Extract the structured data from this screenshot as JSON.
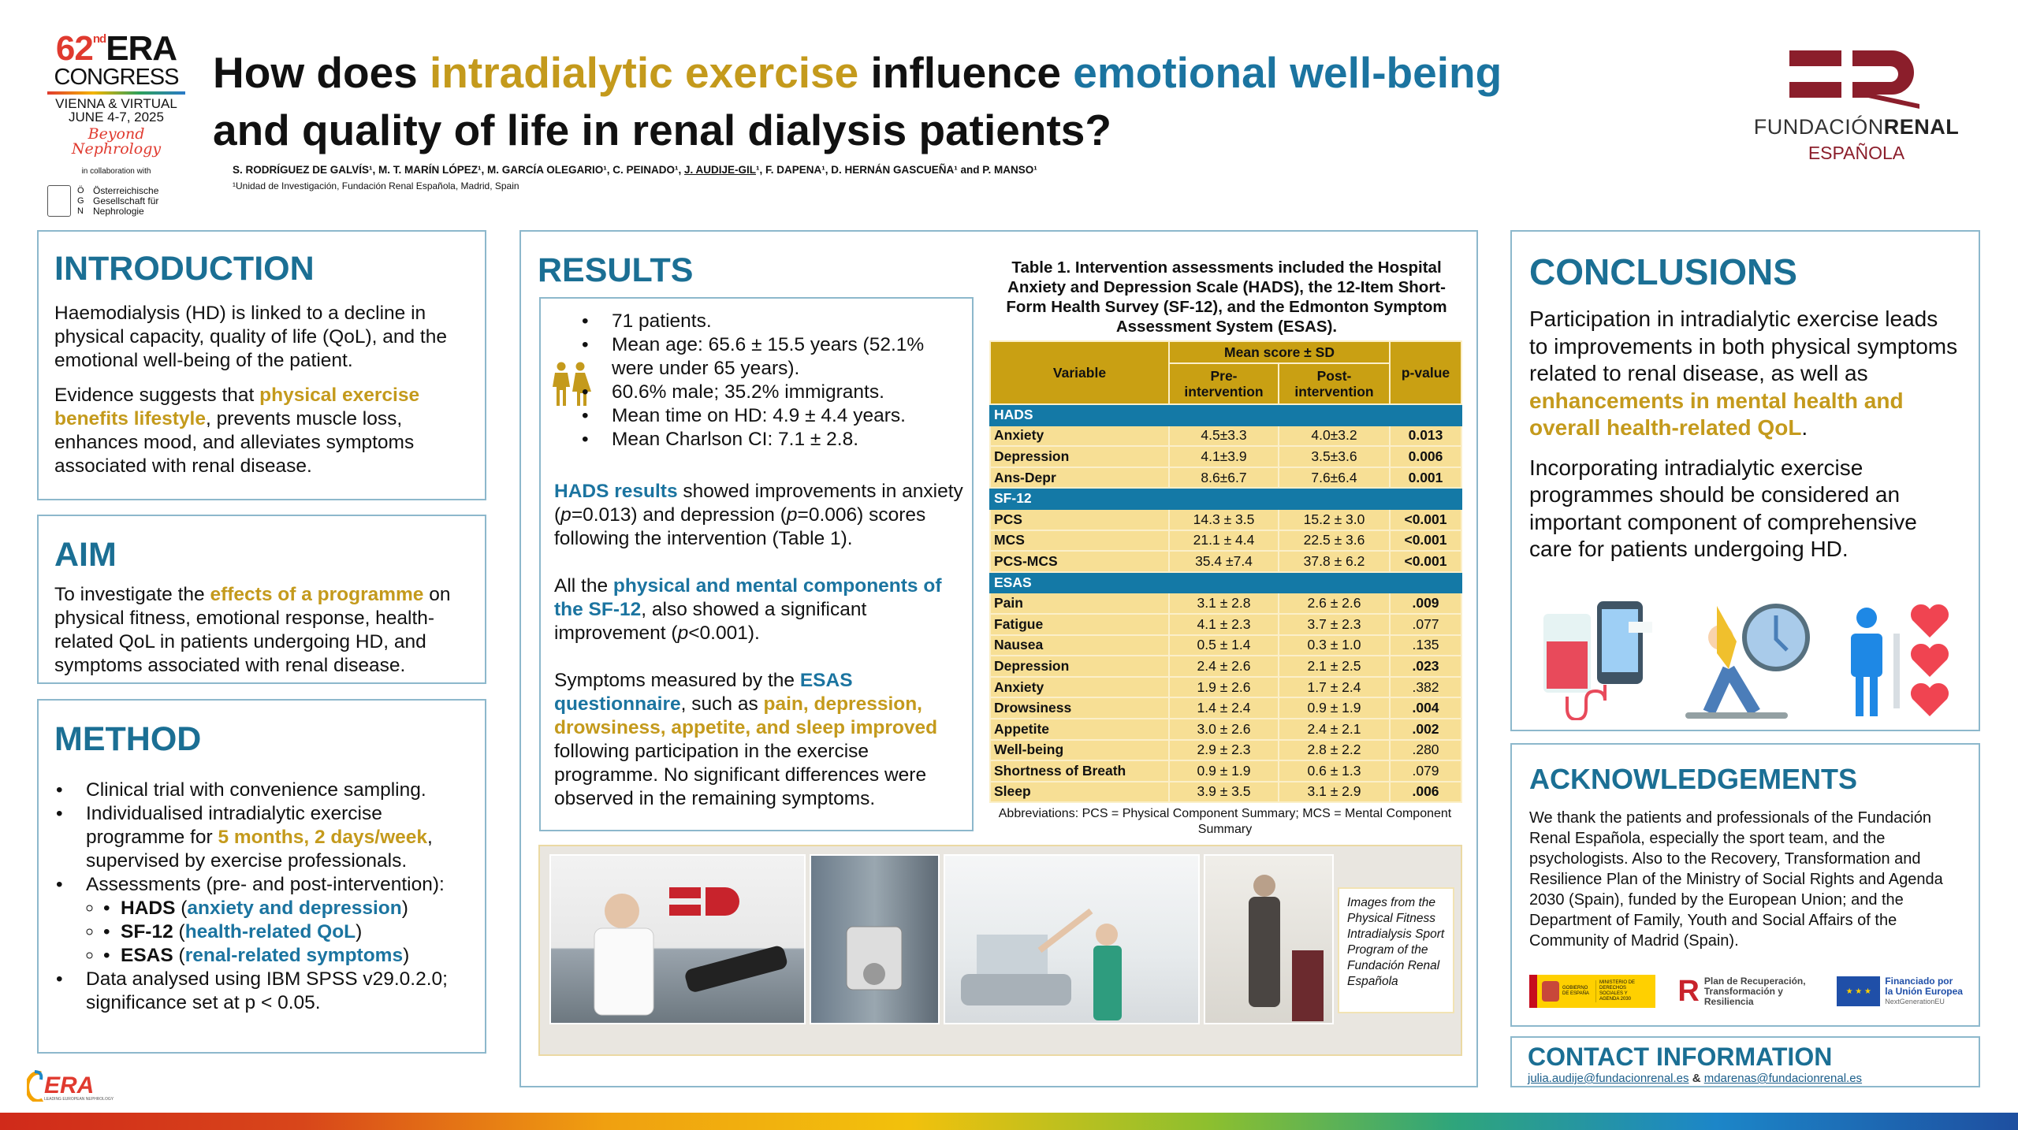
{
  "header": {
    "congress_logo": {
      "number": "62",
      "suffix": "nd",
      "era": "ERA",
      "congress": "CONGRESS",
      "location": "VIENNA & VIRTUAL",
      "dates": "JUNE 4-7, 2025",
      "tagline": "Beyond Nephrology",
      "collab": "in collaboration with",
      "society_letters": "Ö G N",
      "society": "Österreichische Gesellschaft für Nephrologie"
    },
    "title_line1": [
      [
        "How does ",
        ""
      ],
      [
        "intradialytic exercise",
        "g"
      ],
      [
        " influence ",
        ""
      ],
      [
        "emotional well-being",
        "b"
      ]
    ],
    "title_line2": "and quality of life in renal dialysis patients?",
    "authors": [
      [
        "S. RODRÍGUEZ DE GALVÍS¹, M. T. MARÍN LÓPEZ¹, M. GARCÍA OLEGARIO¹, C. PEINADO¹, ",
        ""
      ],
      [
        "J. AUDIJE-GIL",
        "u"
      ],
      [
        "¹, F. DAPENA¹, D. HERNÁN GASCUEÑA¹ and P. MANSO¹",
        ""
      ]
    ],
    "affiliation": "¹Unidad de Investigación, Fundación Renal Española, Madrid, Spain",
    "org_logo": {
      "line1a": "FUNDACIÓN",
      "line1b": "RENAL",
      "line2": "ESPAÑOLA"
    }
  },
  "introduction": {
    "heading": "INTRODUCTION",
    "paragraphs": [
      [
        [
          "Haemodialysis (HD) is linked to a decline in physical capacity, quality of life (QoL), and the emotional well-being of the patient.",
          ""
        ]
      ],
      [
        [
          "Evidence suggests that ",
          ""
        ],
        [
          "physical exercise benefits lifestyle",
          "g"
        ],
        [
          ", prevents muscle loss, enhances mood, and alleviates symptoms associated with renal disease.",
          ""
        ]
      ]
    ]
  },
  "aim": {
    "heading": "AIM",
    "text": [
      [
        "To investigate the ",
        ""
      ],
      [
        "effects of a programme",
        "g"
      ],
      [
        " on physical fitness, emotional response, health-related QoL in patients undergoing HD, and symptoms associated with renal disease.",
        ""
      ]
    ]
  },
  "method": {
    "heading": "METHOD",
    "item1": [
      [
        "Clinical trial with convenience sampling.",
        ""
      ]
    ],
    "item2": [
      [
        "Individualised intradialytic exercise programme for ",
        ""
      ],
      [
        "5 months, 2 days/week",
        "g"
      ],
      [
        ", supervised by exercise professionals.",
        ""
      ]
    ],
    "item3": [
      [
        "Assessments (pre- and post-intervention):",
        ""
      ]
    ],
    "sub1": [
      [
        "HADS",
        "k"
      ],
      [
        " (",
        ""
      ],
      [
        "anxiety and depression",
        "b"
      ],
      [
        ")",
        ""
      ]
    ],
    "sub2": [
      [
        "SF-12",
        "k"
      ],
      [
        " (",
        ""
      ],
      [
        "health-related QoL",
        "b"
      ],
      [
        ")",
        ""
      ]
    ],
    "sub3": [
      [
        "ESAS",
        "k"
      ],
      [
        " (",
        ""
      ],
      [
        "renal-related symptoms",
        "b"
      ],
      [
        ")",
        ""
      ]
    ],
    "item4": [
      [
        "Data analysed using IBM SPSS v29.0.2.0; significance set at p < 0.05.",
        ""
      ]
    ]
  },
  "results": {
    "heading": "RESULTS",
    "demographics": [
      "71 patients.",
      "Mean age: 65.6 ± 15.5 years (52.1% were under 65 years).",
      "60.6% male; 35.2% immigrants.",
      "Mean time on HD: 4.9 ± 4.4 years.",
      "Mean Charlson CI: 7.1 ± 2.8."
    ],
    "p1": [
      [
        "HADS results",
        "b"
      ],
      [
        " showed improvements in anxiety (",
        ""
      ],
      [
        "p",
        "i"
      ],
      [
        "=0.013) and depression (",
        ""
      ],
      [
        "p",
        "i"
      ],
      [
        "=0.006) scores following the intervention (Table 1).",
        ""
      ]
    ],
    "p2": [
      [
        "All the ",
        ""
      ],
      [
        "physical and mental components of the SF-12",
        "b"
      ],
      [
        ", also showed a significant improvement (",
        ""
      ],
      [
        "p",
        "i"
      ],
      [
        "<0.001).",
        ""
      ]
    ],
    "p3": [
      [
        "Symptoms measured by the ",
        ""
      ],
      [
        "ESAS questionnaire",
        "b"
      ],
      [
        ", such as ",
        ""
      ],
      [
        "pain, depression, drowsiness, appetite, and sleep improved",
        "g"
      ],
      [
        " following participation in the exercise programme. No significant differences were observed in the remaining symptoms.",
        ""
      ]
    ],
    "photo_caption": "Images from the Physical Fitness Intradialysis Sport Program of the Fundación Renal Española"
  },
  "table": {
    "caption": "Table 1. Intervention assessments included the Hospital Anxiety and Depression Scale (HADS), the 12-Item Short-Form Health Survey (SF-12), and the Edmonton Symptom Assessment System (ESAS).",
    "col_variable": "Variable",
    "col_group": "Mean score ± SD",
    "col_pre": "Pre-intervention",
    "col_post": "Post-intervention",
    "col_p": "p-value",
    "sections": [
      {
        "name": "HADS",
        "rows": [
          {
            "v": "Anxiety",
            "pre": "4.5±3.3",
            "post": "4.0±3.2",
            "p": "0.013",
            "sig": true
          },
          {
            "v": "Depression",
            "pre": "4.1±3.9",
            "post": "3.5±3.6",
            "p": "0.006",
            "sig": true
          },
          {
            "v": "Ans-Depr",
            "pre": "8.6±6.7",
            "post": "7.6±6.4",
            "p": "0.001",
            "sig": true
          }
        ]
      },
      {
        "name": "SF-12",
        "rows": [
          {
            "v": "PCS",
            "pre": "14.3 ± 3.5",
            "post": "15.2 ± 3.0",
            "p": "<0.001",
            "sig": true
          },
          {
            "v": "MCS",
            "pre": "21.1 ± 4.4",
            "post": "22.5 ± 3.6",
            "p": "<0.001",
            "sig": true
          },
          {
            "v": "PCS-MCS",
            "pre": "35.4 ±7.4",
            "post": "37.8 ± 6.2",
            "p": "<0.001",
            "sig": true
          }
        ]
      },
      {
        "name": "ESAS",
        "rows": [
          {
            "v": "Pain",
            "pre": "3.1 ± 2.8",
            "post": "2.6 ± 2.6",
            "p": ".009",
            "sig": true
          },
          {
            "v": "Fatigue",
            "pre": "4.1 ± 2.3",
            "post": "3.7 ± 2.3",
            "p": ".077",
            "sig": false
          },
          {
            "v": "Nausea",
            "pre": "0.5 ± 1.4",
            "post": "0.3 ± 1.0",
            "p": ".135",
            "sig": false
          },
          {
            "v": "Depression",
            "pre": "2.4 ± 2.6",
            "post": "2.1 ± 2.5",
            "p": ".023",
            "sig": true
          },
          {
            "v": "Anxiety",
            "pre": "1.9 ± 2.6",
            "post": "1.7 ± 2.4",
            "p": ".382",
            "sig": false
          },
          {
            "v": "Drowsiness",
            "pre": "1.4 ± 2.4",
            "post": "0.9 ± 1.9",
            "p": ".004",
            "sig": true
          },
          {
            "v": "Appetite",
            "pre": "3.0 ± 2.6",
            "post": "2.4 ± 2.1",
            "p": ".002",
            "sig": true
          },
          {
            "v": "Well-being",
            "pre": "2.9 ± 2.3",
            "post": "2.8 ± 2.2",
            "p": ".280",
            "sig": false
          },
          {
            "v": "Shortness of Breath",
            "pre": "0.9 ± 1.9",
            "post": "0.6 ± 1.3",
            "p": ".079",
            "sig": false
          },
          {
            "v": "Sleep",
            "pre": "3.9 ± 3.5",
            "post": "3.1 ± 2.9",
            "p": ".006",
            "sig": true
          }
        ]
      }
    ],
    "footnote": "Abbreviations: PCS = Physical Component Summary; MCS = Mental Component Summary"
  },
  "conclusions": {
    "heading": "CONCLUSIONS",
    "p1": [
      [
        "Participation in intradialytic exercise leads to improvements in both physical symptoms related to renal disease, as well as ",
        ""
      ],
      [
        "enhancements in mental health and overall health-related QoL",
        "g"
      ],
      [
        ".",
        ""
      ]
    ],
    "p2": [
      [
        "Incorporating intradialytic exercise programmes should be considered an important component of comprehensive care for patients undergoing HD.",
        ""
      ]
    ]
  },
  "acknowledgements": {
    "heading": "ACKNOWLEDGEMENTS",
    "text": "We thank the patients and professionals of the Fundación Renal Española, especially the sport team, and the psychologists. Also to the Recovery, Transformation and Resilience Plan of the Ministry of Social Rights and Agenda 2030 (Spain), funded by the European Union; and the Department of Family, Youth and Social Affairs of the Community of Madrid (Spain).",
    "logo_gov": {
      "a": "GOBIERNO DE ESPAÑA",
      "b": "MINISTERIO DE DERECHOS SOCIALES Y AGENDA 2030"
    },
    "logo_plan": "Plan de Recuperación, Transformación y Resiliencia",
    "logo_eu": {
      "a": "Financiado por",
      "b": "la Unión Europea",
      "c": "NextGenerationEU"
    }
  },
  "contact": {
    "heading": "CONTACT INFORMATION",
    "email1": "julia.audije@fundacionrenal.es",
    "sep": " & ",
    "email2": "mdarenas@fundacionrenal.es"
  },
  "footer": {
    "era_logo": "ERA",
    "era_tag": "LEADING EUROPEAN NEPHROLOGY"
  },
  "colors": {
    "gold": "#C49A1C",
    "blue": "#1B74A0",
    "brand_red": "#8B1E2B",
    "table_header": "#C9A013",
    "table_row": "#F7DF95",
    "table_section": "#1479A6"
  }
}
